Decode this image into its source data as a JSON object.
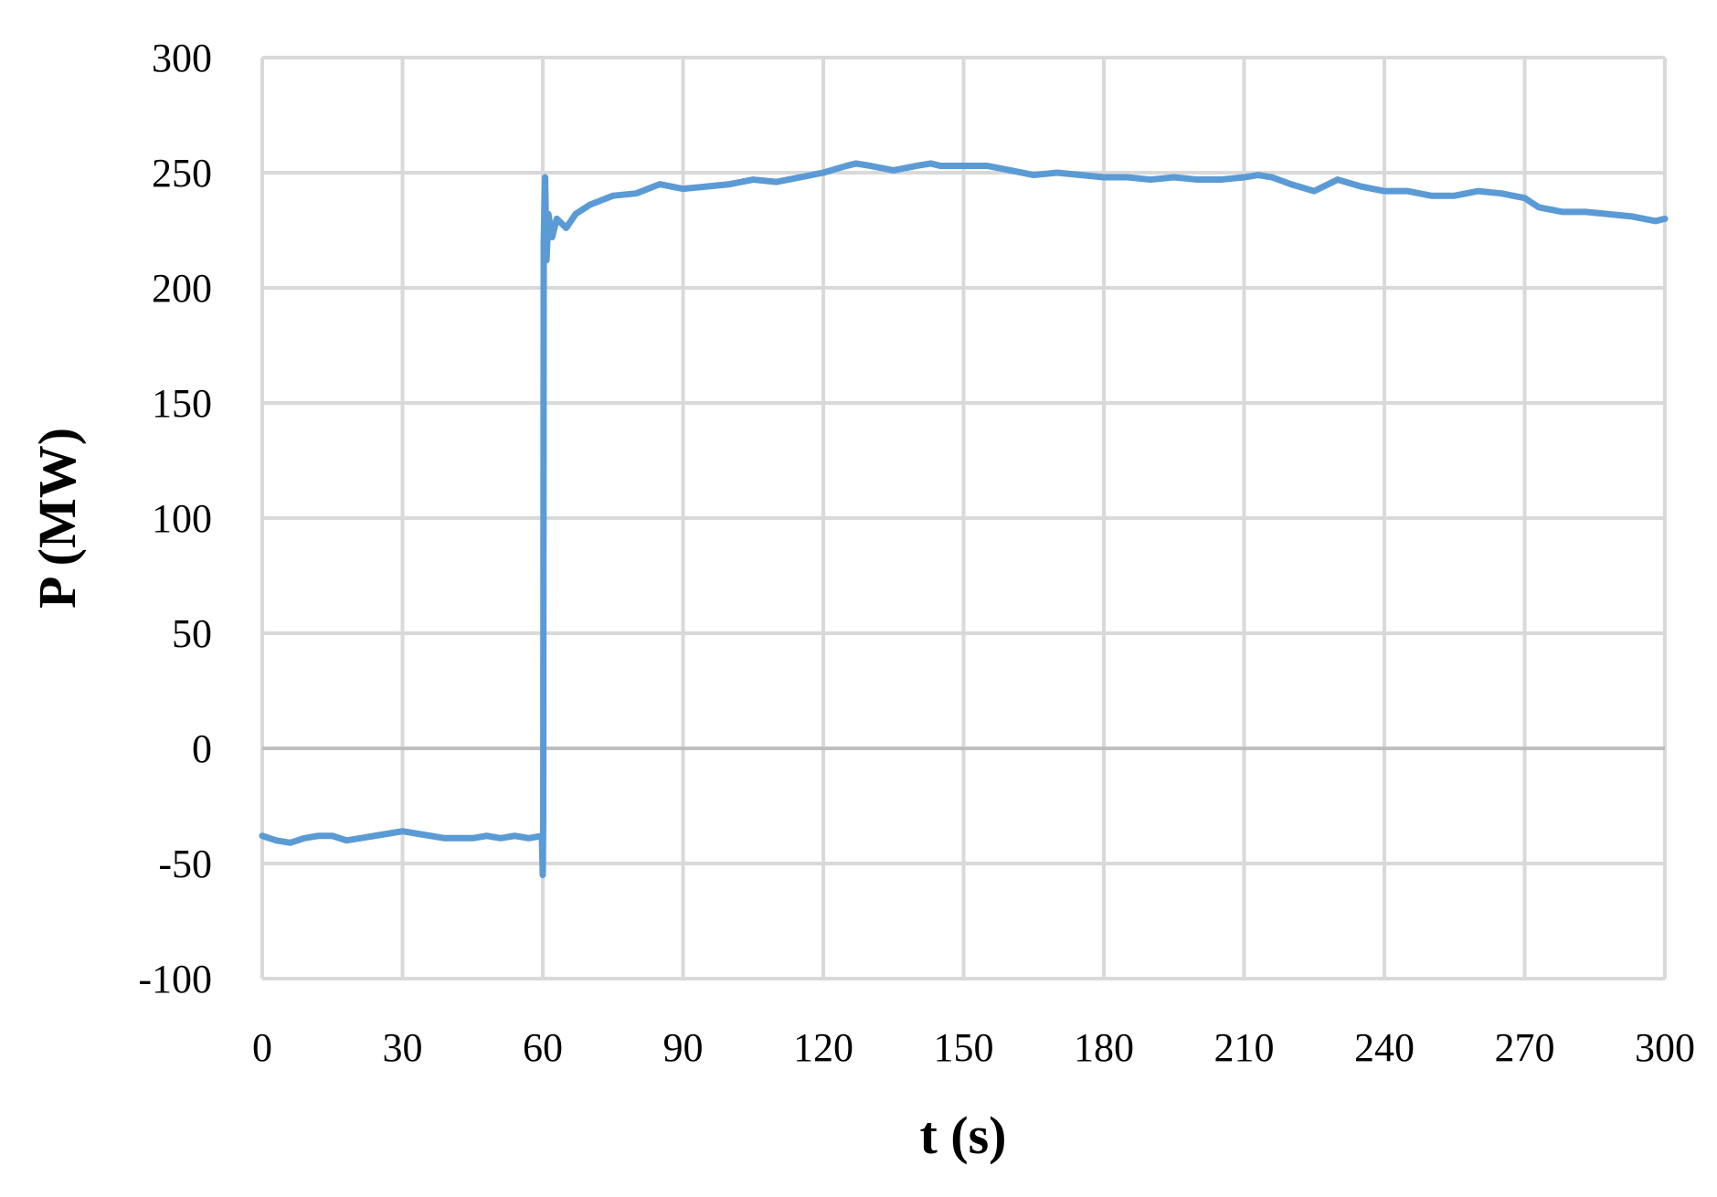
{
  "chart_data": {
    "type": "line",
    "x_label": "t (s)",
    "y_label": "P (MW)",
    "xlim": [
      0,
      300
    ],
    "ylim": [
      -100,
      300
    ],
    "xticks": [
      0,
      30,
      60,
      90,
      120,
      150,
      180,
      210,
      240,
      270,
      300
    ],
    "yticks": [
      -100,
      -50,
      0,
      50,
      100,
      150,
      200,
      250,
      300
    ],
    "grid": true,
    "series": [
      {
        "color": "#5b9bd5",
        "x": [
          0,
          3,
          6,
          9,
          12,
          15,
          18,
          21,
          24,
          27,
          30,
          33,
          36,
          39,
          42,
          45,
          48,
          51,
          54,
          57,
          59.8,
          60,
          60.1,
          60.2,
          60.5,
          60.8,
          61.2,
          62,
          63,
          65,
          67,
          70,
          75,
          80,
          85,
          90,
          95,
          100,
          105,
          110,
          115,
          120,
          125,
          127,
          130,
          135,
          140,
          143,
          145,
          150,
          155,
          160,
          165,
          170,
          175,
          180,
          185,
          190,
          195,
          200,
          205,
          210,
          213,
          216,
          220,
          225,
          230,
          235,
          240,
          245,
          250,
          255,
          260,
          265,
          270,
          273,
          278,
          283,
          288,
          293,
          298,
          300
        ],
        "values": [
          -38,
          -40,
          -41,
          -39,
          -38,
          -38,
          -40,
          -39,
          -38,
          -37,
          -36,
          -37,
          -38,
          -39,
          -39,
          -39,
          -38,
          -39,
          -38,
          -39,
          -38,
          -55,
          -30,
          220,
          248,
          212,
          232,
          222,
          230,
          226,
          232,
          236,
          240,
          241,
          245,
          243,
          244,
          245,
          247,
          246,
          248,
          250,
          253,
          254,
          253,
          251,
          253,
          254,
          253,
          253,
          253,
          251,
          249,
          250,
          249,
          248,
          248,
          247,
          248,
          247,
          247,
          248,
          249,
          248,
          245,
          242,
          247,
          244,
          242,
          242,
          240,
          240,
          242,
          241,
          239,
          235,
          233,
          233,
          232,
          231,
          229,
          230
        ]
      }
    ]
  }
}
